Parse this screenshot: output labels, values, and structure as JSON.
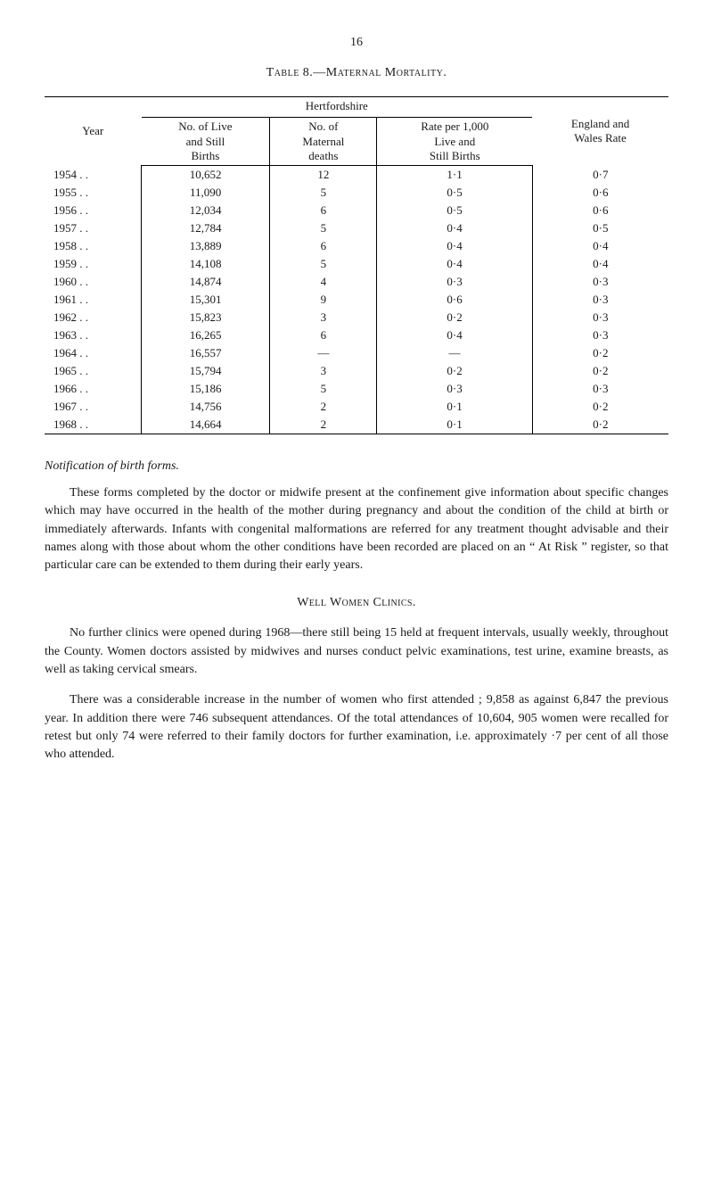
{
  "page_number": "16",
  "table_title": "Table 8.—Maternal Mortality.",
  "table": {
    "spanning_header": "Hertfordshire",
    "columns": {
      "year": "Year",
      "live_still": "No. of Live\nand Still\nBirths",
      "maternal_deaths": "No. of\nMaternal\ndeaths",
      "rate_per_1000": "Rate per 1,000\nLive and\nStill Births",
      "england_wales": "England and\nWales Rate"
    },
    "rows": [
      {
        "year": "1954",
        "dots": ".   .",
        "births": "10,652",
        "deaths": "12",
        "rate": "1·1",
        "ew": "0·7"
      },
      {
        "year": "1955",
        "dots": ".   .",
        "births": "11,090",
        "deaths": "5",
        "rate": "0·5",
        "ew": "0·6"
      },
      {
        "year": "1956",
        "dots": ".   .",
        "births": "12,034",
        "deaths": "6",
        "rate": "0·5",
        "ew": "0·6"
      },
      {
        "year": "1957",
        "dots": ".   .",
        "births": "12,784",
        "deaths": "5",
        "rate": "0·4",
        "ew": "0·5"
      },
      {
        "year": "1958",
        "dots": ".   .",
        "births": "13,889",
        "deaths": "6",
        "rate": "0·4",
        "ew": "0·4"
      },
      {
        "year": "1959",
        "dots": ".   .",
        "births": "14,108",
        "deaths": "5",
        "rate": "0·4",
        "ew": "0·4"
      },
      {
        "year": "1960",
        "dots": ".   .",
        "births": "14,874",
        "deaths": "4",
        "rate": "0·3",
        "ew": "0·3"
      },
      {
        "year": "1961",
        "dots": ".   .",
        "births": "15,301",
        "deaths": "9",
        "rate": "0·6",
        "ew": "0·3"
      },
      {
        "year": "1962",
        "dots": ".   .",
        "births": "15,823",
        "deaths": "3",
        "rate": "0·2",
        "ew": "0·3"
      },
      {
        "year": "1963",
        "dots": ".   .",
        "births": "16,265",
        "deaths": "6",
        "rate": "0·4",
        "ew": "0·3"
      },
      {
        "year": "1964",
        "dots": ".   .",
        "births": "16,557",
        "deaths": "—",
        "rate": "—",
        "ew": "0·2"
      },
      {
        "year": "1965",
        "dots": ".   .",
        "births": "15,794",
        "deaths": "3",
        "rate": "0·2",
        "ew": "0·2"
      },
      {
        "year": "1966",
        "dots": ".   .",
        "births": "15,186",
        "deaths": "5",
        "rate": "0·3",
        "ew": "0·3"
      },
      {
        "year": "1967",
        "dots": ".   .",
        "births": "14,756",
        "deaths": "2",
        "rate": "0·1",
        "ew": "0·2"
      },
      {
        "year": "1968",
        "dots": ".   .",
        "births": "14,664",
        "deaths": "2",
        "rate": "0·1",
        "ew": "0·2"
      }
    ]
  },
  "notification_heading": "Notification of birth forms.",
  "notification_para": "These forms completed by the doctor or midwife present at the confinement give information about specific changes which may have occurred in the health of the mother during pregnancy and about the condition of the child at birth or immediately afterwards. Infants with congenital malformations are referred for any treatment thought advisable and their names along with those about whom the other conditions have been recorded are placed on an “ At Risk ” register, so that particular care can be extended to them during their early years.",
  "well_women_heading": "Well Women Clinics.",
  "well_women_para1": "No further clinics were opened during 1968—there still being 15 held at frequent intervals, usually weekly, throughout the County. Women doctors assisted by midwives and nurses conduct pelvic examinations, test urine, examine breasts, as well as taking cervical smears.",
  "well_women_para2": "There was a considerable increase in the number of women who first attended ; 9,858 as against 6,847 the previous year. In addition there were 746 subsequent attendances. Of the total attendances of 10,604, 905 women were recalled for retest but only 74 were referred to their family doctors for further examination, i.e. approximately ·7 per cent of all those who attended."
}
